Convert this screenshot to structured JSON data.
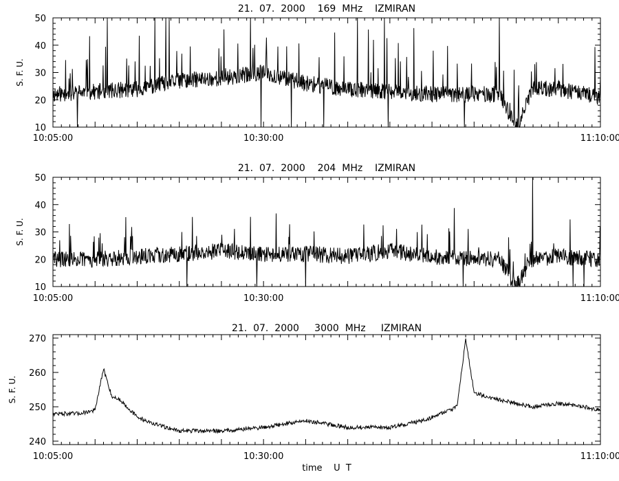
{
  "chart_data": [
    {
      "type": "line",
      "title": "21.  07.  2000    169  MHz    IZMIRAN",
      "ylabel": "S. F. U.",
      "xlabel": "",
      "xlim": [
        "10:05:00",
        "11:10:00"
      ],
      "ylim": [
        10,
        50
      ],
      "y_ticks": [
        "10",
        "20",
        "30",
        "40",
        "50"
      ],
      "x_tick_labels": [
        "10:05:00",
        "10:30:00",
        "11:10:00"
      ],
      "series": [
        {
          "x": [
            "10:05:00",
            "10:10:00",
            "10:15:00",
            "10:20:00",
            "10:25:00",
            "10:30:00",
            "10:35:00",
            "10:40:00",
            "10:45:00",
            "10:50:00",
            "10:55:00",
            "10:58:00",
            "11:00:00",
            "11:02:00",
            "11:05:00",
            "11:10:00"
          ],
          "values": [
            22,
            23,
            24,
            27,
            28,
            30,
            26,
            24,
            23,
            22,
            22,
            22,
            10,
            24,
            24,
            21
          ]
        }
      ],
      "grid": false
    },
    {
      "type": "line",
      "title": "21.  07.  2000    204  MHz    IZMIRAN",
      "ylabel": "S. F. U.",
      "xlabel": "",
      "xlim": [
        "10:05:00",
        "11:10:00"
      ],
      "ylim": [
        10,
        50
      ],
      "y_ticks": [
        "10",
        "20",
        "30",
        "40",
        "50"
      ],
      "x_tick_labels": [
        "10:05:00",
        "10:30:00",
        "11:10:00"
      ],
      "series": [
        {
          "x": [
            "10:05:00",
            "10:10:00",
            "10:15:00",
            "10:20:00",
            "10:25:00",
            "10:30:00",
            "10:35:00",
            "10:40:00",
            "10:45:00",
            "10:50:00",
            "10:55:00",
            "10:58:00",
            "11:00:00",
            "11:02:00",
            "11:05:00",
            "11:10:00"
          ],
          "values": [
            20,
            20,
            21,
            22,
            23,
            22,
            22,
            21,
            23,
            21,
            20,
            20,
            10,
            20,
            21,
            20
          ]
        }
      ],
      "grid": false
    },
    {
      "type": "line",
      "title": "21.  07.  2000     3000  MHz     IZMIRAN",
      "ylabel": "S. F. U.",
      "xlabel": "time    U  T",
      "xlim": [
        "10:05:00",
        "11:10:00"
      ],
      "ylim": [
        239,
        271
      ],
      "y_ticks": [
        "240",
        "250",
        "260",
        "270"
      ],
      "x_tick_labels": [
        "10:05:00",
        "10:30:00",
        "11:10:00"
      ],
      "series": [
        {
          "x": [
            "10:05:00",
            "10:08:00",
            "10:10:00",
            "10:11:00",
            "10:12:00",
            "10:13:00",
            "10:15:00",
            "10:17:00",
            "10:20:00",
            "10:25:00",
            "10:30:00",
            "10:35:00",
            "10:40:00",
            "10:45:00",
            "10:49:00",
            "10:51:00",
            "10:52:00",
            "10:53:00",
            "10:54:00",
            "10:55:00",
            "10:58:00",
            "11:00:00",
            "11:02:00",
            "11:05:00",
            "11:08:00",
            "11:10:00"
          ],
          "values": [
            248,
            248,
            249,
            261,
            253,
            252,
            247,
            245,
            243,
            243,
            244,
            246,
            244,
            244,
            246,
            248,
            249,
            250,
            270,
            254,
            252,
            251,
            250,
            251,
            250,
            249
          ]
        }
      ],
      "grid": false
    }
  ]
}
